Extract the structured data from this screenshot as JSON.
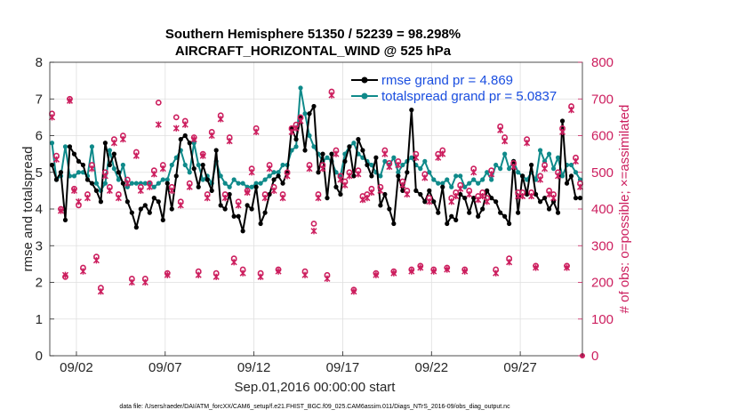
{
  "chart_data": {
    "type": "line",
    "title": "Southern Hemisphere 51350 / 52239 = 98.298%",
    "subtitle": "AIRCRAFT_HORIZONTAL_WIND @ 525 hPa",
    "xlabel": "Sep.01,2016 00:00:00 start",
    "ylabel": "rmse and totalspread",
    "ylabel_right": "# of obs: o=possible; ×=assimilated",
    "footnote": "data file: /Users/raeder/DAI/ATM_forcXX/CAM6_setup/f.e21.FHIST_BGC.f09_025.CAM6assim.011/Diags_NTrS_2016-09/obs_diag_output.nc",
    "xlim": [
      0.5,
      30.5
    ],
    "ylim": [
      0,
      8
    ],
    "ylim_right": [
      0,
      800
    ],
    "x_ticks": [
      2,
      7,
      12,
      17,
      22,
      27
    ],
    "x_tick_labels": [
      "09/02",
      "09/07",
      "09/12",
      "09/17",
      "09/22",
      "09/27"
    ],
    "y_ticks": [
      0,
      1,
      2,
      3,
      4,
      5,
      6,
      7,
      8
    ],
    "y_tick_labels": [
      "0",
      "1",
      "2",
      "3",
      "4",
      "5",
      "6",
      "7",
      "8"
    ],
    "y_ticks_right": [
      0,
      100,
      200,
      300,
      400,
      500,
      600,
      700,
      800
    ],
    "y_tick_labels_right": [
      "0",
      "100",
      "200",
      "300",
      "400",
      "500",
      "600",
      "700",
      "800"
    ],
    "legend_position": "top-right",
    "series": [
      {
        "name": "rmse grand pr = 4.869",
        "color": "#000000",
        "x": [
          0.625,
          0.875,
          1.125,
          1.375,
          1.625,
          1.875,
          2.125,
          2.375,
          2.625,
          2.875,
          3.125,
          3.375,
          3.625,
          3.875,
          4.125,
          4.375,
          4.625,
          4.875,
          5.125,
          5.375,
          5.625,
          5.875,
          6.125,
          6.375,
          6.625,
          6.875,
          7.125,
          7.375,
          7.625,
          7.875,
          8.125,
          8.375,
          8.625,
          8.875,
          9.125,
          9.375,
          9.625,
          9.875,
          10.125,
          10.375,
          10.625,
          10.875,
          11.125,
          11.375,
          11.625,
          11.875,
          12.125,
          12.375,
          12.625,
          12.875,
          13.125,
          13.375,
          13.625,
          13.875,
          14.125,
          14.375,
          14.625,
          14.875,
          15.125,
          15.375,
          15.625,
          15.875,
          16.125,
          16.375,
          16.625,
          16.875,
          17.125,
          17.375,
          17.625,
          17.875,
          18.125,
          18.375,
          18.625,
          18.875,
          19.125,
          19.375,
          19.625,
          19.875,
          20.125,
          20.375,
          20.625,
          20.875,
          21.125,
          21.375,
          21.625,
          21.875,
          22.125,
          22.375,
          22.625,
          22.875,
          23.125,
          23.375,
          23.625,
          23.875,
          24.125,
          24.375,
          24.625,
          24.875,
          25.125,
          25.375,
          25.625,
          25.875,
          26.125,
          26.375,
          26.625,
          26.875,
          27.125,
          27.375,
          27.625,
          27.875,
          28.125,
          28.375,
          28.625,
          28.875,
          29.125,
          29.375,
          29.625,
          29.875,
          30.125,
          30.375
        ],
        "values": [
          5.2,
          4.8,
          5.0,
          3.7,
          5.7,
          5.5,
          5.3,
          5.2,
          4.8,
          4.7,
          4.5,
          4.2,
          5.8,
          5.2,
          5.5,
          5.0,
          4.7,
          4.2,
          3.9,
          3.5,
          4.0,
          4.1,
          3.9,
          4.3,
          4.2,
          3.7,
          4.7,
          4.0,
          4.9,
          5.9,
          6.0,
          5.8,
          5.1,
          4.6,
          5.2,
          4.8,
          4.5,
          5.6,
          4.1,
          4.0,
          4.4,
          3.8,
          3.8,
          3.4,
          4.1,
          4.0,
          4.6,
          3.6,
          3.9,
          4.4,
          4.8,
          4.9,
          4.7,
          5.0,
          6.2,
          5.9,
          6.5,
          5.6,
          6.6,
          6.8,
          5.0,
          5.5,
          4.3,
          5.5,
          4.6,
          4.4,
          5.3,
          5.7,
          4.9,
          5.9,
          5.6,
          5.2,
          4.9,
          5.4,
          4.1,
          4.4,
          4.0,
          3.6,
          4.9,
          4.5,
          5.0,
          6.7,
          4.5,
          4.4,
          4.2,
          4.5,
          4.2,
          3.9,
          4.6,
          3.6,
          3.8,
          3.7,
          4.4,
          4.3,
          3.9,
          4.3,
          3.8,
          4.0,
          4.5,
          4.3,
          4.2,
          3.9,
          3.8,
          3.6,
          5.3,
          3.9,
          4.9,
          4.4,
          5.2,
          4.4,
          4.2,
          4.3,
          4.0,
          4.2,
          3.9,
          6.4,
          4.7,
          4.9,
          4.3,
          4.3
        ]
      },
      {
        "name": "totalspread grand pr = 5.0837",
        "color": "#0f8a8a",
        "x": [
          0.625,
          0.875,
          1.125,
          1.375,
          1.625,
          1.875,
          2.125,
          2.375,
          2.625,
          2.875,
          3.125,
          3.375,
          3.625,
          3.875,
          4.125,
          4.375,
          4.625,
          4.875,
          5.125,
          5.375,
          5.625,
          5.875,
          6.125,
          6.375,
          6.625,
          6.875,
          7.125,
          7.375,
          7.625,
          7.875,
          8.125,
          8.375,
          8.625,
          8.875,
          9.125,
          9.375,
          9.625,
          9.875,
          10.125,
          10.375,
          10.625,
          10.875,
          11.125,
          11.375,
          11.625,
          11.875,
          12.125,
          12.375,
          12.625,
          12.875,
          13.125,
          13.375,
          13.625,
          13.875,
          14.125,
          14.375,
          14.625,
          14.875,
          15.125,
          15.375,
          15.625,
          15.875,
          16.125,
          16.375,
          16.625,
          16.875,
          17.125,
          17.375,
          17.625,
          17.875,
          18.125,
          18.375,
          18.625,
          18.875,
          19.125,
          19.375,
          19.625,
          19.875,
          20.125,
          20.375,
          20.625,
          20.875,
          21.125,
          21.375,
          21.625,
          21.875,
          22.125,
          22.375,
          22.625,
          22.875,
          23.125,
          23.375,
          23.625,
          23.875,
          24.125,
          24.375,
          24.625,
          24.875,
          25.125,
          25.375,
          25.625,
          25.875,
          26.125,
          26.375,
          26.625,
          26.875,
          27.125,
          27.375,
          27.625,
          27.875,
          28.125,
          28.375,
          28.625,
          28.875,
          29.125,
          29.375,
          29.625,
          29.875,
          30.125,
          30.375
        ],
        "values": [
          5.8,
          4.8,
          4.9,
          5.7,
          4.9,
          4.9,
          5.0,
          5.0,
          4.9,
          5.7,
          4.7,
          4.5,
          4.7,
          5.6,
          5.1,
          4.8,
          5.2,
          4.6,
          4.7,
          4.7,
          4.7,
          4.7,
          4.7,
          4.6,
          4.7,
          4.8,
          4.8,
          5.2,
          5.4,
          5.6,
          5.2,
          5.0,
          5.8,
          5.2,
          4.8,
          4.9,
          4.7,
          5.3,
          4.9,
          4.7,
          4.6,
          4.8,
          4.7,
          4.7,
          4.6,
          4.6,
          4.7,
          4.7,
          4.8,
          4.9,
          5.0,
          5.0,
          5.2,
          5.2,
          5.6,
          5.7,
          7.3,
          6.6,
          6.0,
          5.7,
          5.5,
          5.3,
          5.4,
          5.3,
          5.0,
          4.9,
          5.5,
          5.7,
          5.8,
          5.5,
          5.4,
          5.3,
          5.2,
          5.0,
          4.9,
          5.3,
          5.2,
          5.4,
          5.0,
          5.2,
          5.3,
          5.4,
          5.2,
          5.1,
          5.3,
          5.0,
          4.8,
          4.7,
          4.7,
          4.8,
          4.6,
          4.9,
          4.9,
          4.6,
          4.7,
          4.8,
          4.7,
          4.8,
          5.0,
          4.8,
          5.2,
          5.1,
          5.5,
          5.1,
          5.3,
          5.0,
          4.9,
          4.8,
          5.0,
          4.8,
          5.6,
          5.3,
          5.5,
          5.1,
          5.4,
          4.9,
          5.2,
          5.2,
          5.0,
          4.8
        ]
      }
    ],
    "obs_possible": {
      "name": "possible",
      "color": "#cc1e5e",
      "x": [
        0.625,
        0.875,
        1.125,
        1.375,
        1.625,
        1.875,
        2.125,
        2.375,
        2.625,
        2.875,
        3.125,
        3.375,
        3.625,
        3.875,
        4.125,
        4.375,
        4.625,
        4.875,
        5.125,
        5.375,
        5.625,
        5.875,
        6.125,
        6.375,
        6.625,
        6.875,
        7.125,
        7.375,
        7.625,
        7.875,
        8.125,
        8.375,
        8.625,
        8.875,
        9.125,
        9.375,
        9.625,
        9.875,
        10.125,
        10.375,
        10.625,
        10.875,
        11.125,
        11.375,
        11.625,
        11.875,
        12.125,
        12.375,
        12.625,
        12.875,
        13.125,
        13.375,
        13.625,
        13.875,
        14.125,
        14.375,
        14.625,
        14.875,
        15.125,
        15.375,
        15.625,
        15.875,
        16.125,
        16.375,
        16.625,
        16.875,
        17.125,
        17.375,
        17.625,
        17.875,
        18.125,
        18.375,
        18.625,
        18.875,
        19.125,
        19.375,
        19.625,
        19.875,
        20.125,
        20.375,
        20.625,
        20.875,
        21.125,
        21.375,
        21.625,
        21.875,
        22.125,
        22.375,
        22.625,
        22.875,
        23.125,
        23.375,
        23.625,
        23.875,
        24.125,
        24.375,
        24.625,
        24.875,
        25.125,
        25.375,
        25.625,
        25.875,
        26.125,
        26.375,
        26.625,
        26.875,
        27.125,
        27.375,
        27.625,
        27.875,
        28.125,
        28.375,
        28.625,
        28.875,
        29.125,
        29.375,
        29.625,
        29.875,
        30.125,
        30.375
      ],
      "values": [
        660,
        545,
        400,
        215,
        700,
        455,
        410,
        240,
        440,
        520,
        270,
        185,
        500,
        460,
        590,
        440,
        600,
        480,
        210,
        555,
        460,
        210,
        470,
        505,
        690,
        520,
        225,
        460,
        650,
        420,
        640,
        470,
        595,
        230,
        550,
        440,
        610,
        225,
        655,
        440,
        595,
        265,
        420,
        235,
        450,
        510,
        620,
        225,
        440,
        520,
        460,
        235,
        440,
        500,
        620,
        630,
        650,
        230,
        520,
        360,
        440,
        520,
        220,
        720,
        560,
        490,
        475,
        500,
        180,
        505,
        435,
        440,
        455,
        225,
        460,
        560,
        525,
        230,
        530,
        475,
        450,
        235,
        550,
        245,
        495,
        430,
        235,
        550,
        560,
        240,
        430,
        445,
        465,
        235,
        450,
        510,
        435,
        445,
        430,
        505,
        235,
        625,
        595,
        265,
        525,
        445,
        445,
        590,
        445,
        245,
        490,
        520,
        450,
        440,
        500,
        620,
        245,
        680,
        540,
        470
      ]
    },
    "obs_assimilated": {
      "name": "assimilated",
      "color": "#cc1e5e",
      "x": [
        0.625,
        0.875,
        1.125,
        1.375,
        1.625,
        1.875,
        2.125,
        2.375,
        2.625,
        2.875,
        3.125,
        3.375,
        3.625,
        3.875,
        4.125,
        4.375,
        4.625,
        4.875,
        5.125,
        5.375,
        5.625,
        5.875,
        6.125,
        6.375,
        6.625,
        6.875,
        7.125,
        7.375,
        7.625,
        7.875,
        8.125,
        8.375,
        8.625,
        8.875,
        9.125,
        9.375,
        9.625,
        9.875,
        10.125,
        10.375,
        10.625,
        10.875,
        11.125,
        11.375,
        11.625,
        11.875,
        12.125,
        12.375,
        12.625,
        12.875,
        13.125,
        13.375,
        13.625,
        13.875,
        14.125,
        14.375,
        14.625,
        14.875,
        15.125,
        15.375,
        15.625,
        15.875,
        16.125,
        16.375,
        16.625,
        16.875,
        17.125,
        17.375,
        17.625,
        17.875,
        18.125,
        18.375,
        18.625,
        18.875,
        19.125,
        19.375,
        19.625,
        19.875,
        20.125,
        20.375,
        20.625,
        20.875,
        21.125,
        21.375,
        21.625,
        21.875,
        22.125,
        22.375,
        22.625,
        22.875,
        23.125,
        23.375,
        23.625,
        23.875,
        24.125,
        24.375,
        24.625,
        24.875,
        25.125,
        25.375,
        25.625,
        25.875,
        26.125,
        26.375,
        26.625,
        26.875,
        27.125,
        27.375,
        27.625,
        27.875,
        28.125,
        28.375,
        28.625,
        28.875,
        29.125,
        29.375,
        29.625,
        29.875,
        30.125,
        30.375
      ],
      "values": [
        650,
        535,
        395,
        220,
        695,
        450,
        420,
        230,
        430,
        510,
        260,
        175,
        490,
        450,
        580,
        430,
        590,
        470,
        200,
        545,
        450,
        200,
        460,
        495,
        630,
        510,
        220,
        450,
        620,
        410,
        630,
        460,
        590,
        220,
        545,
        430,
        600,
        215,
        645,
        430,
        585,
        255,
        410,
        225,
        445,
        500,
        610,
        215,
        430,
        510,
        450,
        230,
        430,
        490,
        610,
        620,
        640,
        220,
        510,
        340,
        430,
        510,
        210,
        710,
        550,
        480,
        465,
        490,
        175,
        495,
        425,
        430,
        445,
        220,
        450,
        550,
        515,
        225,
        520,
        465,
        440,
        230,
        540,
        240,
        485,
        420,
        230,
        540,
        550,
        235,
        420,
        435,
        455,
        230,
        440,
        500,
        425,
        435,
        420,
        495,
        225,
        615,
        585,
        255,
        515,
        435,
        435,
        580,
        435,
        240,
        480,
        510,
        440,
        430,
        490,
        610,
        240,
        670,
        530,
        460
      ]
    }
  },
  "colors": {
    "axis": "#262626",
    "right_axis": "#cc1e5e",
    "legend_text": "#1a4ee0",
    "grid": "#dfdfdf"
  }
}
